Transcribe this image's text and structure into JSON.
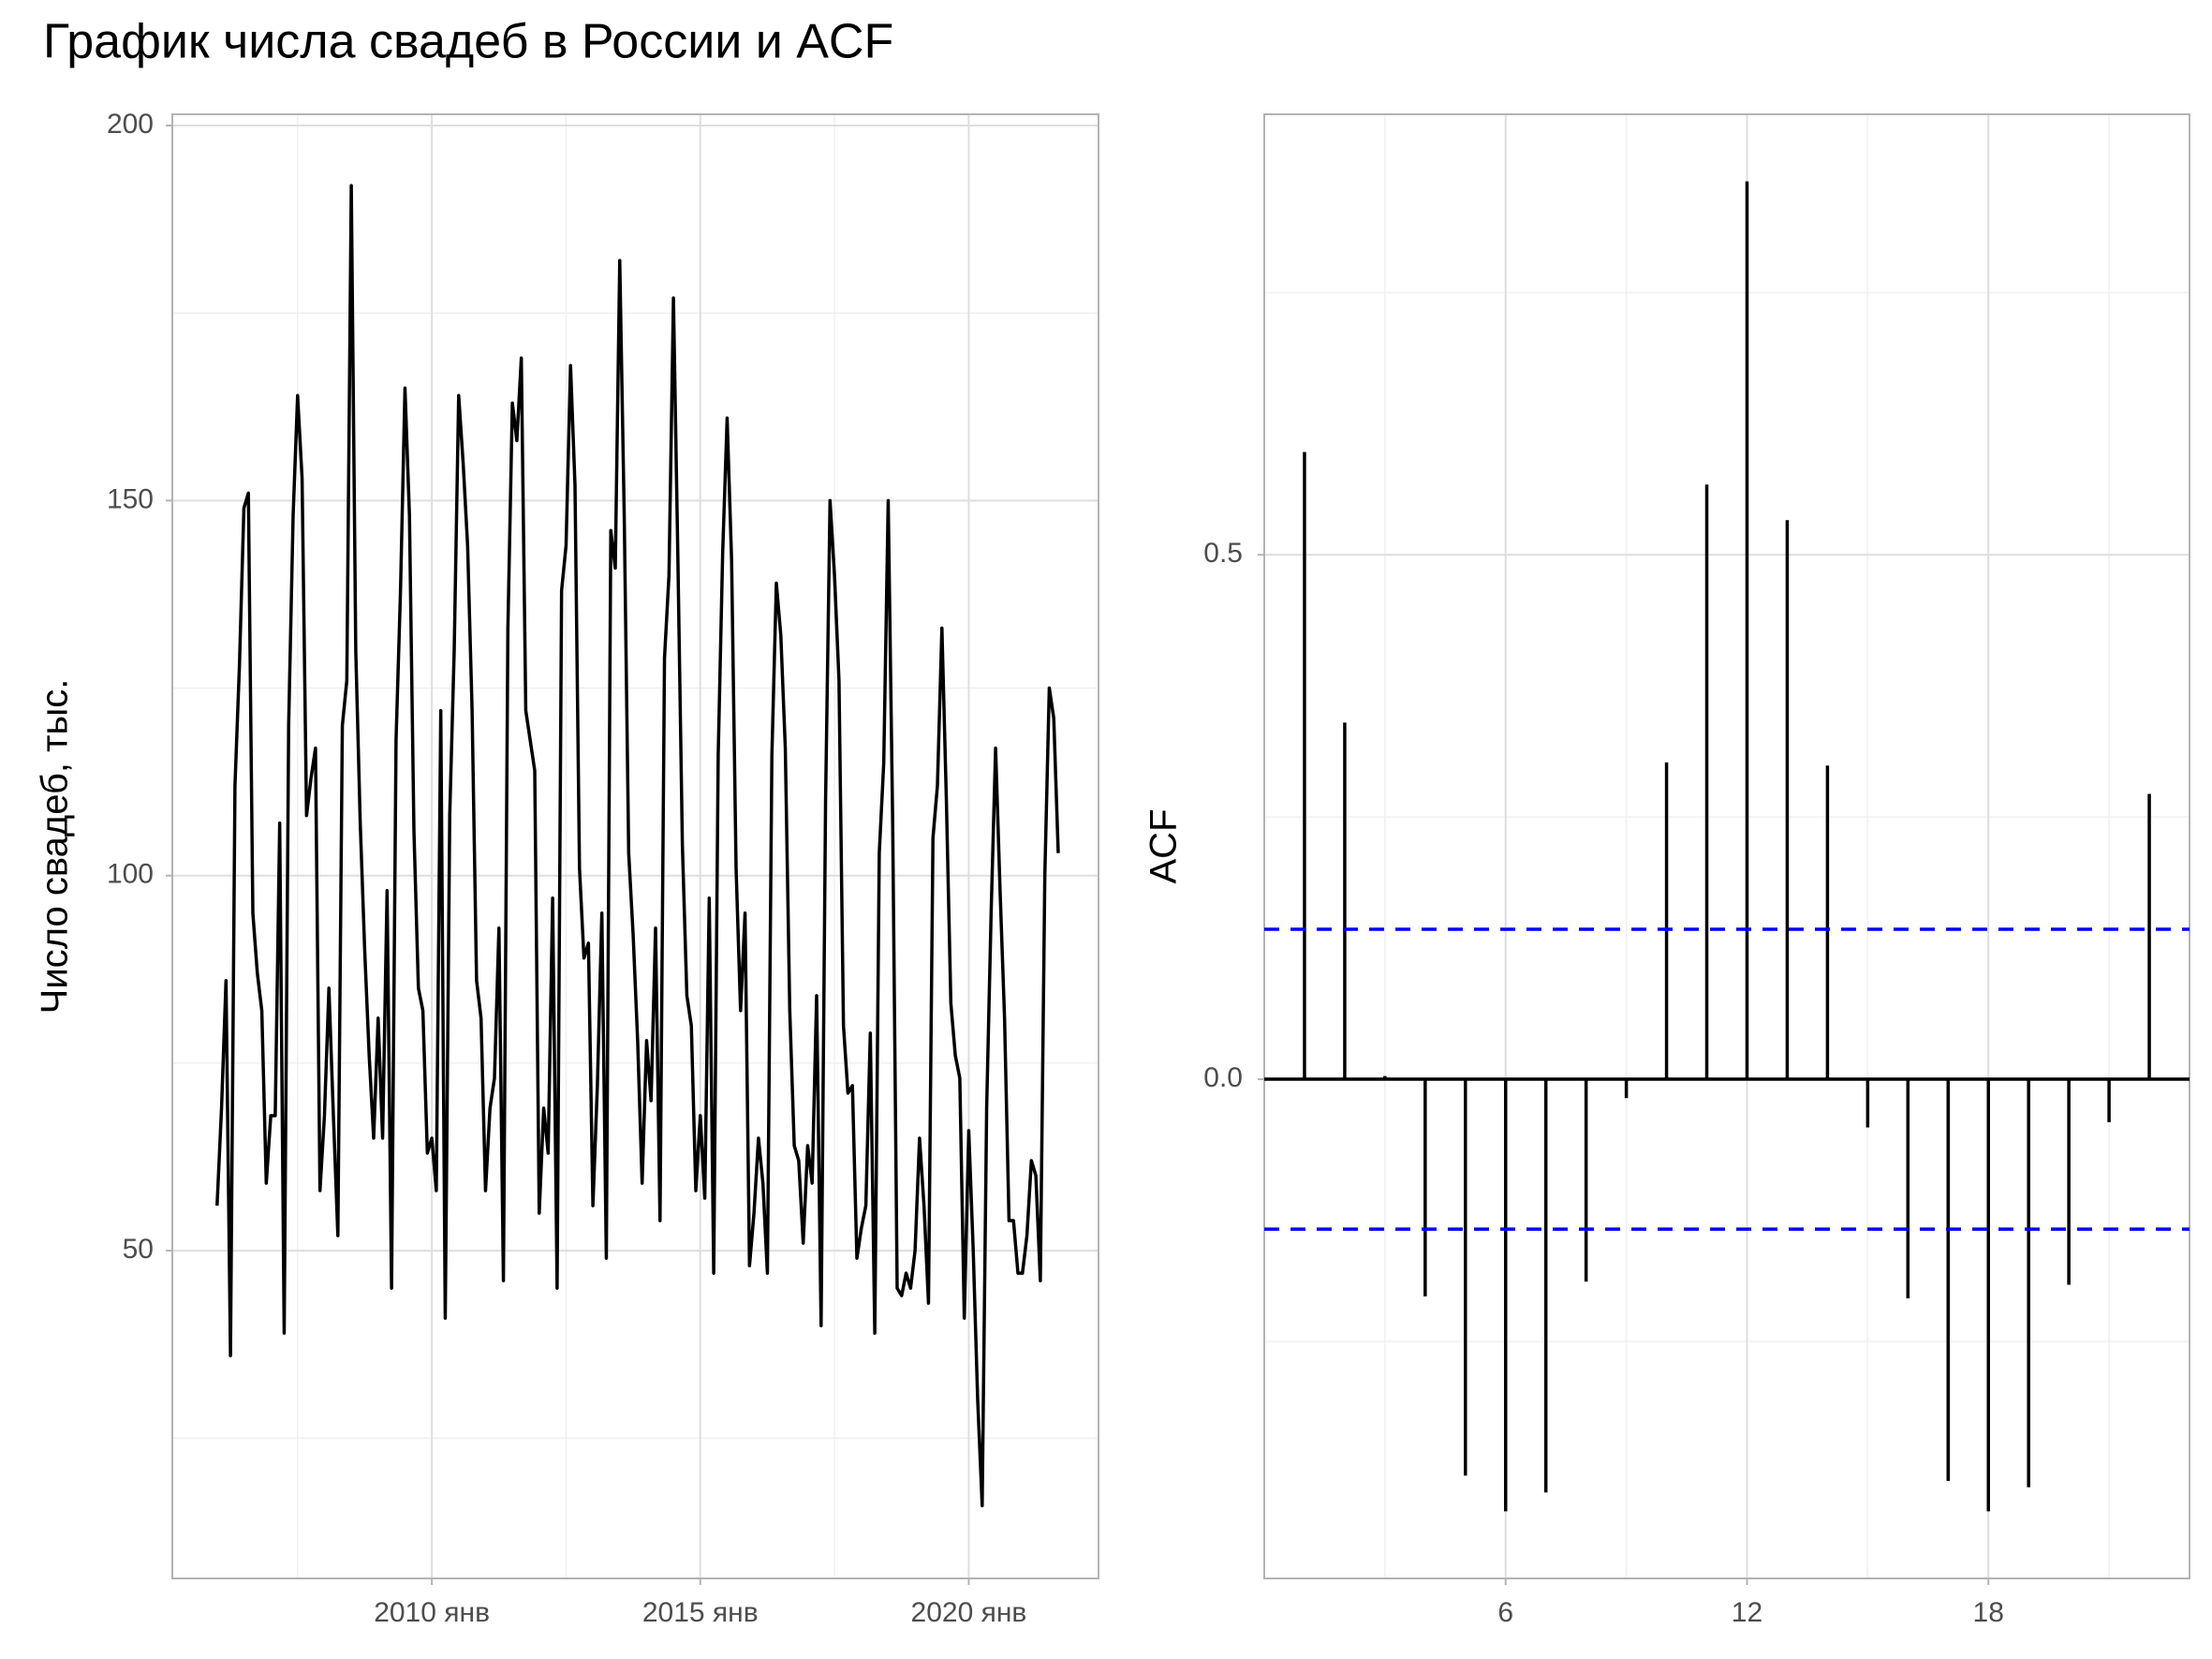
{
  "title": "График числа свадеб в России и ACF",
  "chart_data": [
    {
      "type": "line",
      "ylabel": "Число свадеб, тыс.",
      "color": "#000000",
      "grid": true,
      "xlim": [
        "2005-03",
        "2022-06"
      ],
      "xticks": [
        {
          "value": "2010-01",
          "label": "2010 янв"
        },
        {
          "value": "2015-01",
          "label": "2015 янв"
        },
        {
          "value": "2020-01",
          "label": "2020 янв"
        }
      ],
      "ylim": [
        6.3,
        201.5
      ],
      "yticks": [
        50,
        100,
        150,
        200
      ],
      "x": [
        "2006-01",
        "2006-02",
        "2006-03",
        "2006-04",
        "2006-05",
        "2006-06",
        "2006-07",
        "2006-08",
        "2006-09",
        "2006-10",
        "2006-11",
        "2006-12",
        "2007-01",
        "2007-02",
        "2007-03",
        "2007-04",
        "2007-05",
        "2007-06",
        "2007-07",
        "2007-08",
        "2007-09",
        "2007-10",
        "2007-11",
        "2007-12",
        "2008-01",
        "2008-02",
        "2008-03",
        "2008-04",
        "2008-05",
        "2008-06",
        "2008-07",
        "2008-08",
        "2008-09",
        "2008-10",
        "2008-11",
        "2008-12",
        "2009-01",
        "2009-02",
        "2009-03",
        "2009-04",
        "2009-05",
        "2009-06",
        "2009-07",
        "2009-08",
        "2009-09",
        "2009-10",
        "2009-11",
        "2009-12",
        "2010-01",
        "2010-02",
        "2010-03",
        "2010-04",
        "2010-05",
        "2010-06",
        "2010-07",
        "2010-08",
        "2010-09",
        "2010-10",
        "2010-11",
        "2010-12",
        "2011-01",
        "2011-02",
        "2011-03",
        "2011-04",
        "2011-05",
        "2011-06",
        "2011-07",
        "2011-08",
        "2011-09",
        "2011-10",
        "2011-11",
        "2011-12",
        "2012-01",
        "2012-02",
        "2012-03",
        "2012-04",
        "2012-05",
        "2012-06",
        "2012-07",
        "2012-08",
        "2012-09",
        "2012-10",
        "2012-11",
        "2012-12",
        "2013-01",
        "2013-02",
        "2013-03",
        "2013-04",
        "2013-05",
        "2013-06",
        "2013-07",
        "2013-08",
        "2013-09",
        "2013-10",
        "2013-11",
        "2013-12",
        "2014-01",
        "2014-02",
        "2014-03",
        "2014-04",
        "2014-05",
        "2014-06",
        "2014-07",
        "2014-08",
        "2014-09",
        "2014-10",
        "2014-11",
        "2014-12",
        "2015-01",
        "2015-02",
        "2015-03",
        "2015-04",
        "2015-05",
        "2015-06",
        "2015-07",
        "2015-08",
        "2015-09",
        "2015-10",
        "2015-11",
        "2015-12",
        "2016-01",
        "2016-02",
        "2016-03",
        "2016-04",
        "2016-05",
        "2016-06",
        "2016-07",
        "2016-08",
        "2016-09",
        "2016-10",
        "2016-11",
        "2016-12",
        "2017-01",
        "2017-02",
        "2017-03",
        "2017-04",
        "2017-05",
        "2017-06",
        "2017-07",
        "2017-08",
        "2017-09",
        "2017-10",
        "2017-11",
        "2017-12",
        "2018-01",
        "2018-02",
        "2018-03",
        "2018-04",
        "2018-05",
        "2018-06",
        "2018-07",
        "2018-08",
        "2018-09",
        "2018-10",
        "2018-11",
        "2018-12",
        "2019-01",
        "2019-02",
        "2019-03",
        "2019-04",
        "2019-05",
        "2019-06",
        "2019-07",
        "2019-08",
        "2019-09",
        "2019-10",
        "2019-11",
        "2019-12",
        "2020-01",
        "2020-02",
        "2020-03",
        "2020-04",
        "2020-05",
        "2020-06",
        "2020-07",
        "2020-08",
        "2020-09",
        "2020-10",
        "2020-11",
        "2020-12",
        "2021-01",
        "2021-02",
        "2021-03",
        "2021-04",
        "2021-05",
        "2021-06",
        "2021-07",
        "2021-08",
        "2021-09"
      ],
      "values": [
        56,
        69,
        86,
        36,
        112,
        128,
        149,
        151,
        95,
        87,
        82,
        59,
        68,
        68,
        107,
        39,
        120,
        148,
        164,
        153,
        108,
        113,
        117,
        58,
        68,
        85,
        68,
        52,
        120,
        126,
        192,
        130,
        107,
        90,
        76,
        65,
        81,
        65,
        98,
        45,
        118,
        138,
        165,
        148,
        106,
        85,
        82,
        63,
        65,
        58,
        122,
        41,
        108,
        130,
        164,
        155,
        144,
        122,
        86,
        81,
        58,
        69,
        73,
        93,
        46,
        133,
        163,
        158,
        169,
        122,
        118,
        114,
        55,
        69,
        63,
        97,
        45,
        138,
        144,
        168,
        152,
        101,
        89,
        91,
        56,
        72,
        95,
        49,
        146,
        141,
        182,
        148,
        103,
        92,
        78,
        59,
        78,
        70,
        93,
        54,
        129,
        140,
        177,
        142,
        104,
        84,
        80,
        58,
        68,
        57,
        97,
        47,
        116,
        143,
        161,
        142,
        101,
        82,
        95,
        48,
        55,
        65,
        59,
        47,
        116,
        139,
        132,
        117,
        82,
        64,
        62,
        51,
        64,
        59,
        84,
        40,
        110,
        150,
        140,
        126,
        80,
        71,
        72,
        49,
        53,
        56,
        79,
        39,
        103,
        115,
        150,
        107,
        45,
        44,
        47,
        45,
        50,
        65,
        56,
        43,
        105,
        112,
        133,
        110,
        83,
        76,
        73,
        41,
        66,
        50,
        30,
        16,
        69,
        95,
        117,
        98,
        81,
        54,
        54,
        47,
        47,
        52,
        62,
        60,
        46,
        100,
        125,
        121,
        103
      ]
    },
    {
      "type": "acf",
      "ylabel": "ACF",
      "color": "#000000",
      "grid": true,
      "xlim": [
        0,
        23
      ],
      "xticks": [
        6,
        12,
        18
      ],
      "ylim": [
        -0.476,
        0.92
      ],
      "yticks": [
        {
          "value": 0,
          "label": "0.0"
        },
        0.5
      ],
      "x": [
        1,
        2,
        3,
        4,
        5,
        6,
        7,
        8,
        9,
        10,
        11,
        12,
        13,
        14,
        15,
        16,
        17,
        18,
        19,
        20,
        21,
        22
      ],
      "values": [
        0.598,
        0.34,
        0.003,
        -0.207,
        -0.378,
        -0.412,
        -0.394,
        -0.193,
        -0.018,
        0.302,
        0.567,
        0.856,
        0.533,
        0.299,
        -0.046,
        -0.209,
        -0.383,
        -0.412,
        -0.389,
        -0.196,
        -0.041,
        0.272
      ],
      "confidence_bounds": [
        0.143,
        -0.143
      ],
      "bound_color": "#0000ff"
    }
  ]
}
